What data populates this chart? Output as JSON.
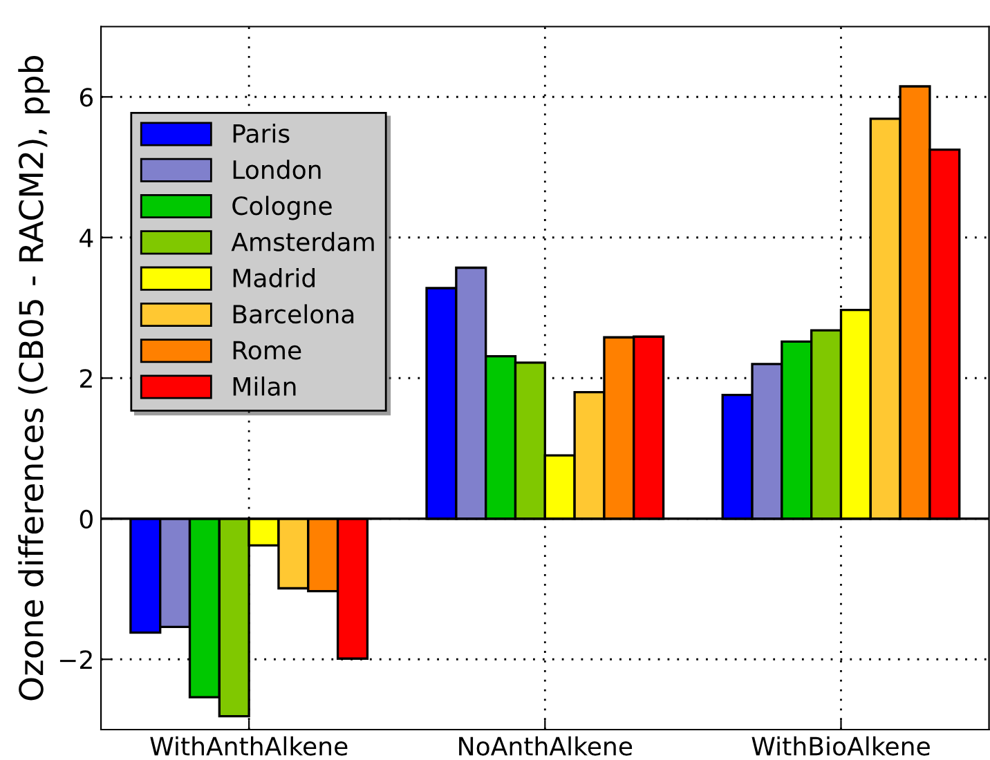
{
  "chart_data": {
    "type": "bar",
    "ylabel": "Ozone differences (CB05 - RACM2), ppb",
    "categories": [
      "WithAnthAlkene",
      "NoAnthAlkene",
      "WithBioAlkene"
    ],
    "series": [
      {
        "name": "Paris",
        "color": "#0000ff",
        "values": [
          -1.62,
          3.28,
          1.76
        ]
      },
      {
        "name": "London",
        "color": "#8080cc",
        "values": [
          -1.54,
          3.57,
          2.2
        ]
      },
      {
        "name": "Cologne",
        "color": "#00c800",
        "values": [
          -2.54,
          2.31,
          2.52
        ]
      },
      {
        "name": "Amsterdam",
        "color": "#80c800",
        "values": [
          -2.81,
          2.22,
          2.68
        ]
      },
      {
        "name": "Madrid",
        "color": "#ffff00",
        "values": [
          -0.38,
          0.9,
          2.97
        ]
      },
      {
        "name": "Barcelona",
        "color": "#ffc832",
        "values": [
          -0.99,
          1.8,
          5.69
        ]
      },
      {
        "name": "Rome",
        "color": "#ff8000",
        "values": [
          -1.03,
          2.58,
          6.15
        ]
      },
      {
        "name": "Milan",
        "color": "#ff0000",
        "values": [
          -1.99,
          2.59,
          5.25
        ]
      }
    ],
    "ylim": [
      -3,
      7
    ],
    "yticks": [
      {
        "value": -2,
        "label": "−2"
      },
      0,
      2,
      4,
      6
    ],
    "ref_lines": [
      {
        "axis": "y",
        "value": 0,
        "color": "#000000"
      }
    ],
    "grid": true,
    "legend": "top left"
  }
}
